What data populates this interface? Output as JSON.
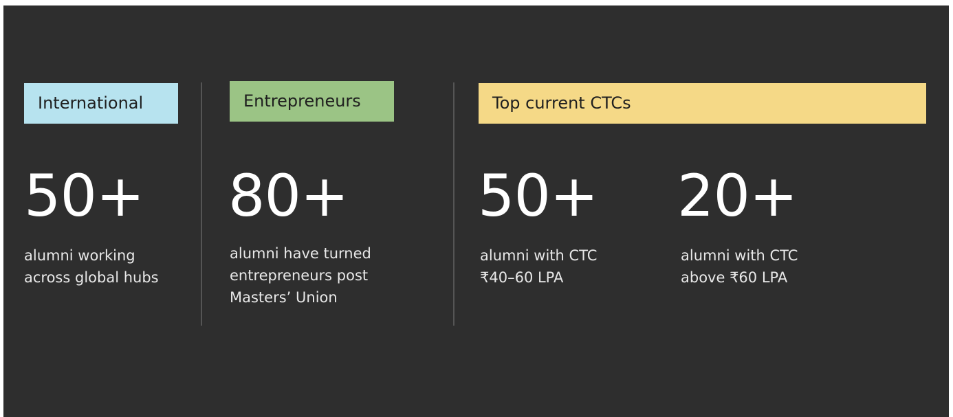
{
  "sections": [
    {
      "tag": "International",
      "stats": [
        {
          "number": "50+",
          "text": "alumni working across global hubs"
        }
      ]
    },
    {
      "tag": "Entrepreneurs",
      "stats": [
        {
          "number": "80+",
          "text": "alumni have turned entrepreneurs post Masters’ Union"
        }
      ]
    },
    {
      "tag": "Top current CTCs",
      "stats": [
        {
          "number": "50+",
          "text": "alumni with CTC ₹40–60 LPA"
        },
        {
          "number": "20+",
          "text": "alumni with CTC above ₹60 LPA"
        }
      ]
    }
  ]
}
